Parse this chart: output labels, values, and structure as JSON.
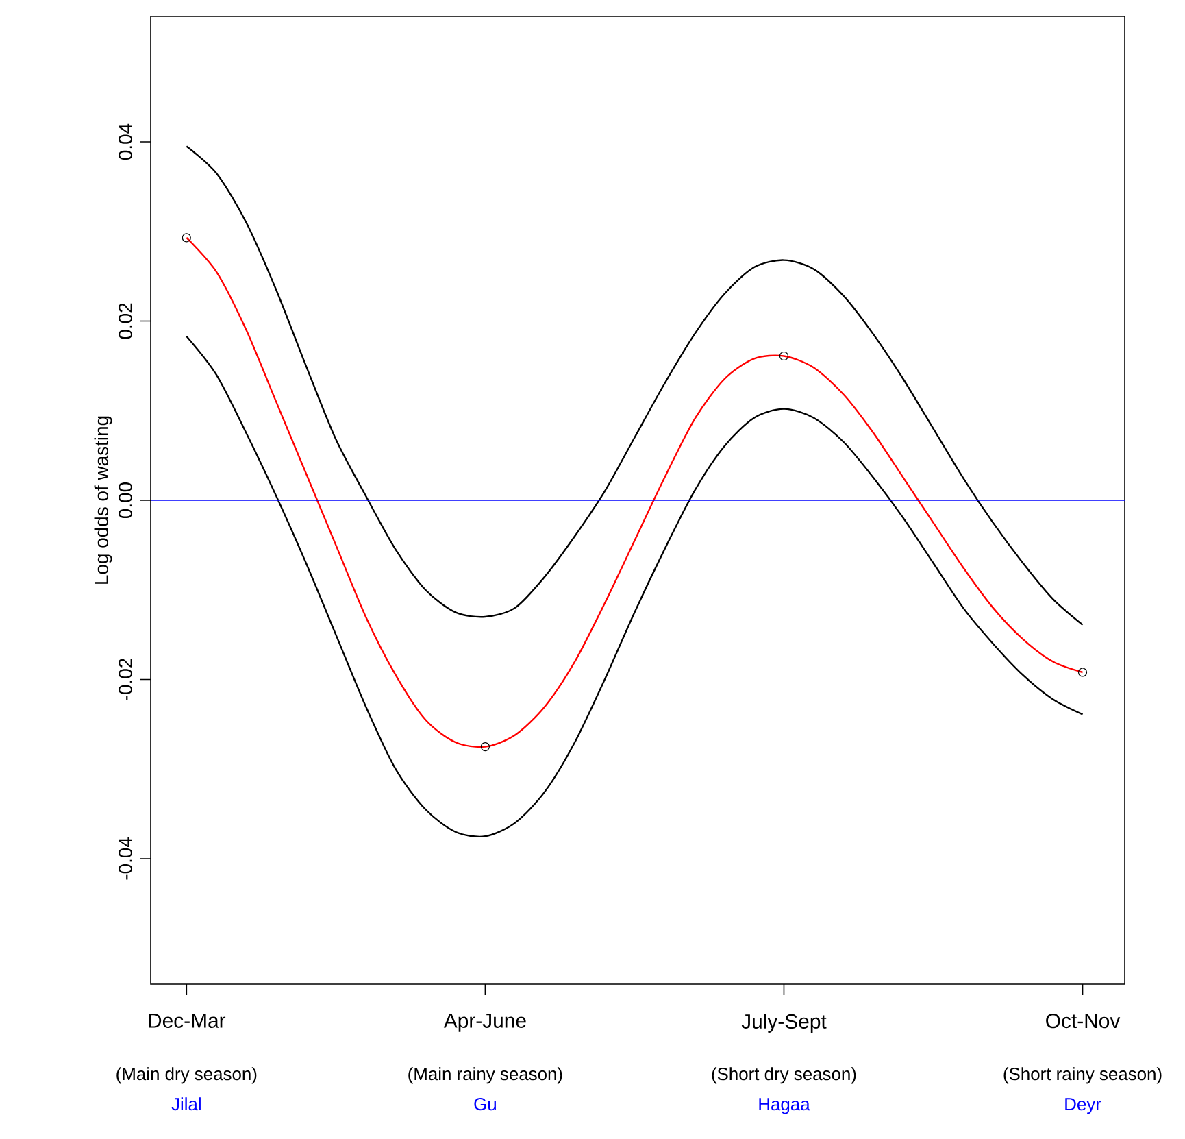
{
  "chart_data": {
    "type": "line",
    "ylabel": "Log odds of wasting",
    "categories": [
      "Dec-Mar",
      null,
      null,
      null,
      null,
      null,
      null,
      null,
      null,
      null,
      "Apr-June",
      null,
      null,
      null,
      null,
      null,
      null,
      null,
      null,
      null,
      "July-Sept",
      null,
      null,
      null,
      null,
      null,
      null,
      null,
      null,
      null,
      "Oct-Nov"
    ],
    "series": [
      {
        "color": "#000000",
        "marker": "none",
        "values": [
          0.0395,
          0.0365,
          0.031,
          0.0235,
          0.015,
          0.0068,
          0.0005,
          -0.0055,
          -0.01,
          -0.0125,
          -0.013,
          -0.012,
          -0.0085,
          -0.004,
          0.001,
          0.007,
          0.013,
          0.0185,
          0.023,
          0.026,
          0.0268,
          0.0258,
          0.0228,
          0.0185,
          0.0135,
          0.008,
          0.0025,
          -0.0025,
          -0.007,
          -0.011,
          -0.0139
        ]
      },
      {
        "color": "#000000",
        "marker": "none",
        "values": [
          0.0183,
          0.014,
          0.0075,
          0.0005,
          -0.007,
          -0.015,
          -0.023,
          -0.03,
          -0.0345,
          -0.037,
          -0.0375,
          -0.036,
          -0.0325,
          -0.027,
          -0.02,
          -0.0125,
          -0.0055,
          0.001,
          0.006,
          0.0092,
          0.0102,
          0.0092,
          0.0065,
          0.0025,
          -0.002,
          -0.007,
          -0.012,
          -0.016,
          -0.0195,
          -0.0222,
          -0.0239
        ]
      },
      {
        "color": "#ff0000",
        "marker": "none",
        "values": [
          0.0293,
          0.0255,
          0.019,
          0.011,
          0.003,
          -0.005,
          -0.013,
          -0.0195,
          -0.0245,
          -0.027,
          -0.0275,
          -0.0262,
          -0.023,
          -0.018,
          -0.0115,
          -0.0045,
          0.0025,
          0.009,
          0.0135,
          0.0158,
          0.0161,
          0.0148,
          0.0118,
          0.0075,
          0.0025,
          -0.0025,
          -0.0075,
          -0.012,
          -0.0155,
          -0.018,
          -0.0192
        ]
      },
      {
        "type": "scatter",
        "color": "#000000",
        "marker": "circle",
        "values": [
          0.0293,
          null,
          null,
          null,
          null,
          null,
          null,
          null,
          null,
          null,
          -0.0275,
          null,
          null,
          null,
          null,
          null,
          null,
          null,
          null,
          null,
          0.0161,
          null,
          null,
          null,
          null,
          null,
          null,
          null,
          null,
          null,
          -0.0192
        ]
      }
    ],
    "ylim": [
      -0.054,
      0.054
    ],
    "yticks": [
      {
        "value": -0.04,
        "label": "-0.04"
      },
      {
        "value": -0.02,
        "label": "-0.02"
      },
      {
        "value": 0,
        "label": "0.00"
      },
      {
        "value": 0.02,
        "label": "0.02"
      },
      {
        "value": 0.04,
        "label": "0.04"
      }
    ],
    "ref_lines": [
      {
        "axis": "y",
        "value": 0,
        "color": "#0000ff"
      }
    ],
    "annotations": [
      "(Main dry season)",
      "(Main rainy season)",
      "(Short dry season)",
      "(Short rainy season)",
      "Jilal",
      "Gu",
      "Hagaa",
      "Deyr"
    ],
    "grid": false
  }
}
